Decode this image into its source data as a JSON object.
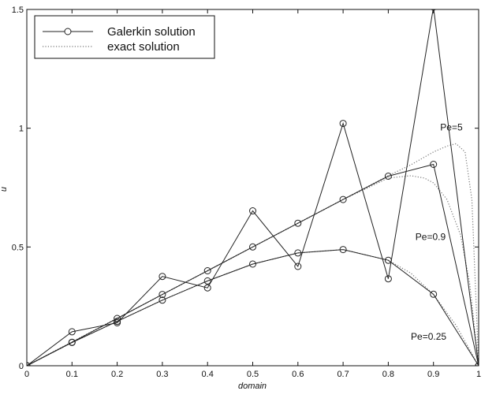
{
  "chart_data": {
    "type": "line",
    "title": "",
    "xlabel": "domain",
    "ylabel": "u",
    "xlim": [
      0,
      1
    ],
    "ylim": [
      0,
      1.5
    ],
    "grid": false,
    "legend_position": "top-left",
    "xticks": [
      {
        "value": 0,
        "label": "0"
      },
      {
        "value": 0.1,
        "label": "0.1"
      },
      {
        "value": 0.2,
        "label": "0.2"
      },
      {
        "value": 0.3,
        "label": "0.3"
      },
      {
        "value": 0.4,
        "label": "0.4"
      },
      {
        "value": 0.5,
        "label": "0.5"
      },
      {
        "value": 0.6,
        "label": "0.6"
      },
      {
        "value": 0.7,
        "label": "0.7"
      },
      {
        "value": 0.8,
        "label": "0.8"
      },
      {
        "value": 0.9,
        "label": "0.9"
      },
      {
        "value": 1,
        "label": "1"
      }
    ],
    "yticks": [
      {
        "value": 0,
        "label": "0"
      },
      {
        "value": 0.5,
        "label": "0.5"
      },
      {
        "value": 1,
        "label": "1"
      },
      {
        "value": 1.5,
        "label": "1.5"
      }
    ],
    "legend": [
      {
        "label": "Galerkin solution",
        "style": "solid-circle"
      },
      {
        "label": "exact solution",
        "style": "dotted"
      }
    ],
    "series": [
      {
        "kind": "galerkin",
        "case": "Pe=5",
        "x": [
          0,
          0.1,
          0.2,
          0.3,
          0.4,
          0.5,
          0.6,
          0.7,
          0.8,
          0.9,
          1
        ],
        "y": [
          0,
          0.143,
          0.181,
          0.376,
          0.328,
          0.652,
          0.418,
          1.02,
          0.366,
          1.51,
          0
        ]
      },
      {
        "kind": "galerkin",
        "case": "Pe=0.9",
        "x": [
          0,
          0.1,
          0.2,
          0.3,
          0.4,
          0.5,
          0.6,
          0.7,
          0.8,
          0.9,
          1
        ],
        "y": [
          0,
          0.099,
          0.199,
          0.3,
          0.4,
          0.5,
          0.6,
          0.7,
          0.798,
          0.848,
          0
        ]
      },
      {
        "kind": "galerkin",
        "case": "Pe=0.25",
        "x": [
          0,
          0.1,
          0.2,
          0.3,
          0.4,
          0.5,
          0.6,
          0.7,
          0.8,
          0.9,
          1
        ],
        "y": [
          0,
          0.098,
          0.187,
          0.276,
          0.357,
          0.428,
          0.475,
          0.489,
          0.444,
          0.301,
          0
        ]
      },
      {
        "kind": "exact",
        "case": "Pe=5",
        "x": [
          0,
          0.1,
          0.2,
          0.3,
          0.4,
          0.5,
          0.6,
          0.7,
          0.75,
          0.8,
          0.85,
          0.9,
          0.93,
          0.95,
          0.97,
          0.985,
          1
        ],
        "y": [
          0,
          0.1,
          0.2,
          0.3,
          0.4,
          0.5,
          0.6,
          0.7,
          0.75,
          0.8,
          0.846,
          0.9,
          0.925,
          0.935,
          0.9,
          0.7,
          0
        ]
      },
      {
        "kind": "exact",
        "case": "Pe=0.9",
        "x": [
          0,
          0.1,
          0.2,
          0.3,
          0.4,
          0.5,
          0.6,
          0.7,
          0.75,
          0.8,
          0.85,
          0.88,
          0.9,
          0.93,
          0.96,
          0.98,
          1
        ],
        "y": [
          0,
          0.1,
          0.2,
          0.3,
          0.4,
          0.5,
          0.6,
          0.7,
          0.745,
          0.79,
          0.8,
          0.79,
          0.77,
          0.7,
          0.55,
          0.35,
          0
        ]
      },
      {
        "kind": "exact",
        "case": "Pe=0.25",
        "x": [
          0,
          0.1,
          0.2,
          0.3,
          0.4,
          0.5,
          0.6,
          0.7,
          0.8,
          0.85,
          0.9,
          0.95,
          1
        ],
        "y": [
          0,
          0.098,
          0.187,
          0.276,
          0.357,
          0.428,
          0.475,
          0.489,
          0.444,
          0.39,
          0.3,
          0.17,
          0
        ]
      }
    ],
    "annotations": [
      {
        "text": "Pe=5",
        "x": 0.915,
        "y": 0.99
      },
      {
        "text": "Pe=0.9",
        "x": 0.86,
        "y": 0.53
      },
      {
        "text": "Pe=0.25",
        "x": 0.85,
        "y": 0.11
      }
    ]
  }
}
